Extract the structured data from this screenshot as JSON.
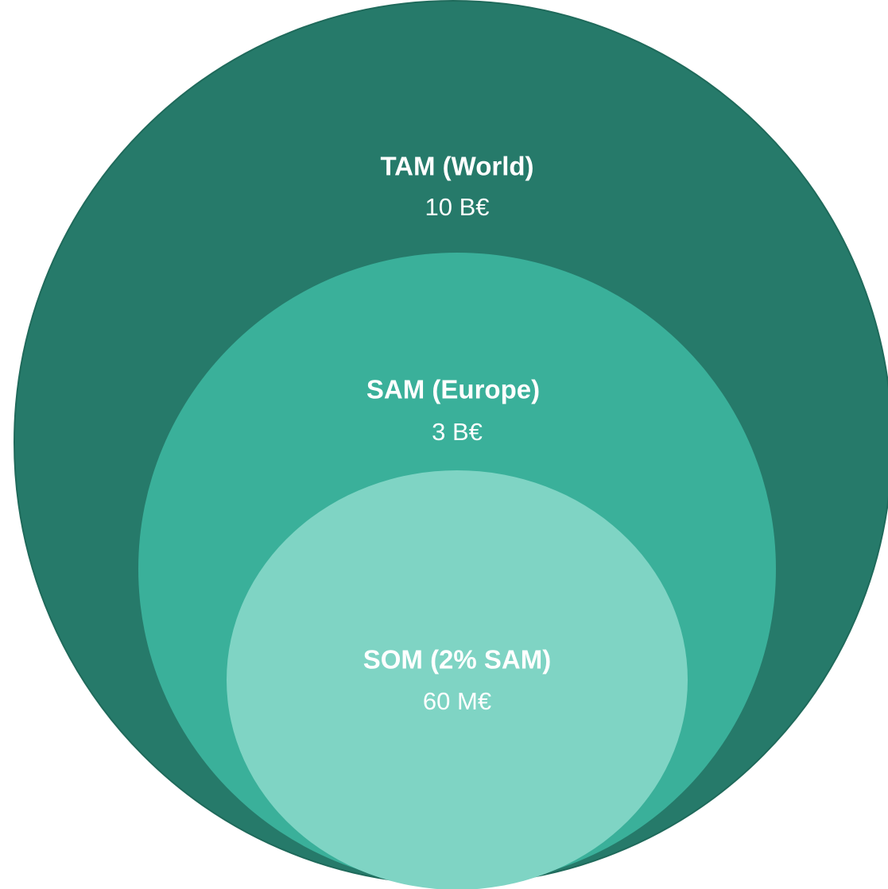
{
  "nodes": [
    {
      "label": "TAM (World)",
      "value": "10 B€"
    },
    {
      "label": "SAM (Europe)",
      "value": "3 B€"
    },
    {
      "label": "SOM (2% SAM)",
      "value": "60 M€"
    }
  ]
}
